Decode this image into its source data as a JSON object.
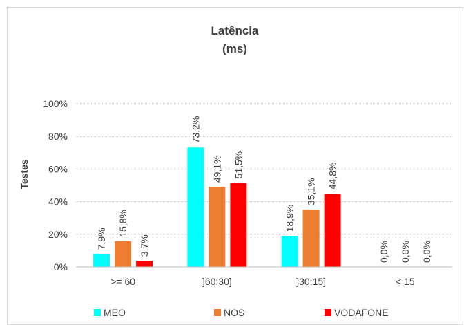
{
  "chart_data": {
    "type": "bar",
    "title": [
      "Latência",
      "(ms)"
    ],
    "ylabel": "Testes",
    "xlabel": "",
    "categories": [
      ">= 60",
      "]60;30]",
      "]30;15]",
      "< 15"
    ],
    "yticks": [
      "0%",
      "20%",
      "40%",
      "60%",
      "80%",
      "100%"
    ],
    "ylim": [
      0,
      100
    ],
    "grid": true,
    "legend_position": "bottom",
    "series": [
      {
        "name": "MEO",
        "color": "#00FFFF",
        "values": [
          7.9,
          73.2,
          18.9,
          0.0
        ],
        "labels": [
          "7,9%",
          "73,2%",
          "18,9%",
          "0,0%"
        ]
      },
      {
        "name": "NOS",
        "color": "#ED7D31",
        "values": [
          15.8,
          49.1,
          35.1,
          0.0
        ],
        "labels": [
          "15,8%",
          "49,1%",
          "35,1%",
          "0,0%"
        ]
      },
      {
        "name": "VODAFONE",
        "color": "#FF0000",
        "values": [
          3.7,
          51.5,
          44.8,
          0.0
        ],
        "labels": [
          "3,7%",
          "51,5%",
          "44,8%",
          "0,0%"
        ]
      }
    ]
  }
}
